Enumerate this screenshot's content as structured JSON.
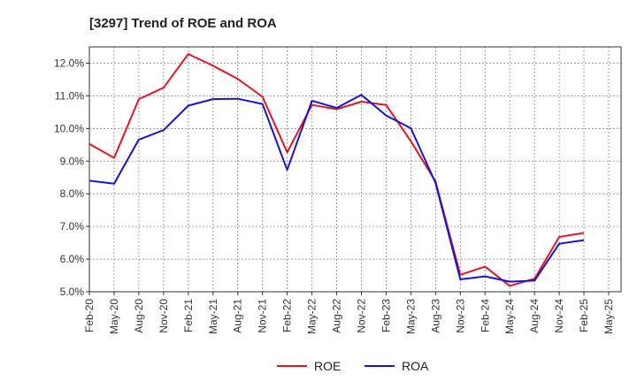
{
  "chart_data": {
    "type": "line",
    "title": "[3297]  Trend of ROE and ROA",
    "xlabel": "",
    "ylabel": "",
    "categories": [
      "Feb-20",
      "May-20",
      "Aug-20",
      "Nov-20",
      "Feb-21",
      "May-21",
      "Aug-21",
      "Nov-21",
      "Feb-22",
      "May-22",
      "Aug-22",
      "Nov-22",
      "Feb-23",
      "May-23",
      "Aug-23",
      "Nov-23",
      "Feb-24",
      "May-24",
      "Aug-24",
      "Nov-24",
      "Feb-25",
      "May-25"
    ],
    "ylim": [
      5.0,
      12.5
    ],
    "yticks": [
      "5.0%",
      "6.0%",
      "7.0%",
      "8.0%",
      "9.0%",
      "10.0%",
      "11.0%",
      "12.0%"
    ],
    "grid": true,
    "legend_position": "bottom",
    "series": [
      {
        "name": "ROE",
        "color": "#e8141b",
        "values": [
          9.53,
          9.1,
          10.9,
          11.25,
          12.28,
          11.92,
          11.52,
          10.97,
          9.27,
          10.72,
          10.59,
          10.82,
          10.72,
          9.61,
          8.38,
          5.52,
          5.77,
          5.18,
          5.4,
          6.68,
          6.8,
          null
        ]
      },
      {
        "name": "ROA",
        "color": "#1414d2",
        "values": [
          8.4,
          8.31,
          9.66,
          9.95,
          10.7,
          10.9,
          10.91,
          10.75,
          8.73,
          10.85,
          10.63,
          11.03,
          10.4,
          10.01,
          8.33,
          5.38,
          5.47,
          5.31,
          5.34,
          6.47,
          6.58,
          null
        ]
      }
    ]
  }
}
